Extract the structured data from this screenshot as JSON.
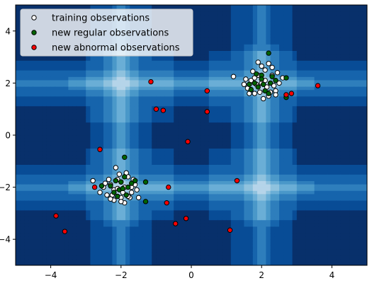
{
  "chart_data": {
    "type": "scatter",
    "title": "",
    "xlabel": "",
    "ylabel": "",
    "xlim": [
      -5,
      5
    ],
    "ylim": [
      -5,
      5
    ],
    "x_ticks": [
      -4,
      -2,
      0,
      2,
      4
    ],
    "y_ticks": [
      -4,
      -2,
      0,
      2,
      4
    ],
    "grid": false,
    "legend_position": "top-left",
    "background": {
      "type": "contour",
      "colormap": "Blues_r",
      "colors": [
        "#08306b",
        "#084c96",
        "#1664ac",
        "#2e7ebc",
        "#4a98c9",
        "#6aaed6",
        "#8fc2de",
        "#b5d4e9"
      ],
      "description": "decision function contours with light bands along x≈-2, x≈2, y≈-2, y≈2"
    },
    "series": [
      {
        "name": "training observations",
        "marker_fill": "#ffffff",
        "marker_edge": "#000000",
        "points": [
          [
            -2.4,
            -2.3
          ],
          [
            -2.3,
            -1.9
          ],
          [
            -2.2,
            -2.1
          ],
          [
            -2.1,
            -1.7
          ],
          [
            -2.0,
            -2.4
          ],
          [
            -1.9,
            -2.0
          ],
          [
            -1.8,
            -1.6
          ],
          [
            -1.7,
            -2.2
          ],
          [
            -1.6,
            -1.9
          ],
          [
            -2.5,
            -2.0
          ],
          [
            -2.2,
            -2.5
          ],
          [
            -1.9,
            -2.6
          ],
          [
            -2.05,
            -1.5
          ],
          [
            -1.75,
            -2.4
          ],
          [
            -2.35,
            -1.7
          ],
          [
            -1.55,
            -2.1
          ],
          [
            -2.15,
            -1.25
          ],
          [
            -1.85,
            -1.45
          ],
          [
            -2.6,
            -2.2
          ],
          [
            -1.65,
            -1.7
          ],
          [
            -2.8,
            -1.75
          ],
          [
            -1.95,
            -2.2
          ],
          [
            -2.25,
            -2.3
          ],
          [
            -1.7,
            -2.0
          ],
          [
            -2.0,
            -2.55
          ],
          [
            -2.45,
            -1.85
          ],
          [
            -1.8,
            -2.35
          ],
          [
            -2.1,
            -2.05
          ],
          [
            -1.5,
            -2.4
          ],
          [
            -2.3,
            -2.45
          ],
          [
            1.9,
            2.8
          ],
          [
            2.1,
            2.5
          ],
          [
            2.3,
            2.3
          ],
          [
            1.7,
            2.1
          ],
          [
            2.2,
            1.5
          ],
          [
            1.8,
            1.6
          ],
          [
            2.5,
            2.0
          ],
          [
            2.0,
            2.0
          ],
          [
            1.6,
            1.8
          ],
          [
            2.4,
            1.7
          ],
          [
            1.9,
            2.3
          ],
          [
            2.3,
            2.6
          ],
          [
            2.05,
            1.4
          ],
          [
            1.5,
            1.95
          ],
          [
            2.6,
            2.2
          ],
          [
            1.75,
            2.45
          ],
          [
            2.15,
            1.85
          ],
          [
            1.95,
            1.65
          ],
          [
            2.45,
            2.4
          ],
          [
            1.85,
            1.95
          ],
          [
            1.2,
            2.25
          ],
          [
            2.2,
            2.75
          ],
          [
            1.65,
            1.6
          ],
          [
            2.35,
            1.9
          ],
          [
            2.0,
            2.65
          ],
          [
            1.55,
            2.15
          ],
          [
            2.25,
            1.65
          ],
          [
            1.8,
            2.2
          ],
          [
            2.4,
            1.55
          ],
          [
            2.1,
            2.1
          ]
        ]
      },
      {
        "name": "new regular observations",
        "marker_fill": "#006400",
        "marker_edge": "#000000",
        "points": [
          [
            -2.2,
            -2.2
          ],
          [
            -2.0,
            -1.8
          ],
          [
            -1.8,
            -2.0
          ],
          [
            -2.1,
            -2.35
          ],
          [
            -1.9,
            -1.6
          ],
          [
            -1.7,
            -1.85
          ],
          [
            -2.3,
            -1.95
          ],
          [
            -2.05,
            -2.1
          ],
          [
            -1.6,
            -1.75
          ],
          [
            -1.3,
            -1.8
          ],
          [
            -1.3,
            -2.55
          ],
          [
            -1.9,
            -0.85
          ],
          [
            -2.55,
            -1.95
          ],
          [
            -1.85,
            -2.3
          ],
          [
            -2.15,
            -1.75
          ],
          [
            -1.95,
            -2.05
          ],
          [
            2.2,
            3.15
          ],
          [
            2.0,
            2.3
          ],
          [
            1.8,
            2.0
          ],
          [
            2.3,
            2.25
          ],
          [
            2.1,
            1.7
          ],
          [
            1.9,
            1.85
          ],
          [
            2.2,
            1.6
          ],
          [
            1.7,
            1.75
          ],
          [
            2.4,
            2.1
          ],
          [
            2.0,
            2.15
          ],
          [
            2.7,
            1.45
          ],
          [
            2.7,
            2.2
          ],
          [
            1.85,
            2.35
          ],
          [
            2.05,
            1.95
          ],
          [
            2.25,
            2.0
          ],
          [
            1.65,
            1.95
          ]
        ]
      },
      {
        "name": "new abnormal observations",
        "marker_fill": "#ff0000",
        "marker_edge": "#000000",
        "points": [
          [
            -1.15,
            2.05
          ],
          [
            -1.0,
            1.0
          ],
          [
            -0.8,
            0.95
          ],
          [
            0.45,
            1.7
          ],
          [
            0.45,
            0.9
          ],
          [
            3.6,
            1.9
          ],
          [
            2.7,
            1.55
          ],
          [
            2.85,
            1.6
          ],
          [
            -0.1,
            -0.25
          ],
          [
            -2.6,
            -0.55
          ],
          [
            -2.75,
            -2.0
          ],
          [
            -0.65,
            -2.0
          ],
          [
            -0.7,
            -2.6
          ],
          [
            -3.85,
            -3.1
          ],
          [
            -3.6,
            -3.7
          ],
          [
            -0.45,
            -3.4
          ],
          [
            -0.15,
            -3.2
          ],
          [
            1.1,
            -3.65
          ],
          [
            1.3,
            -1.75
          ]
        ]
      }
    ]
  }
}
